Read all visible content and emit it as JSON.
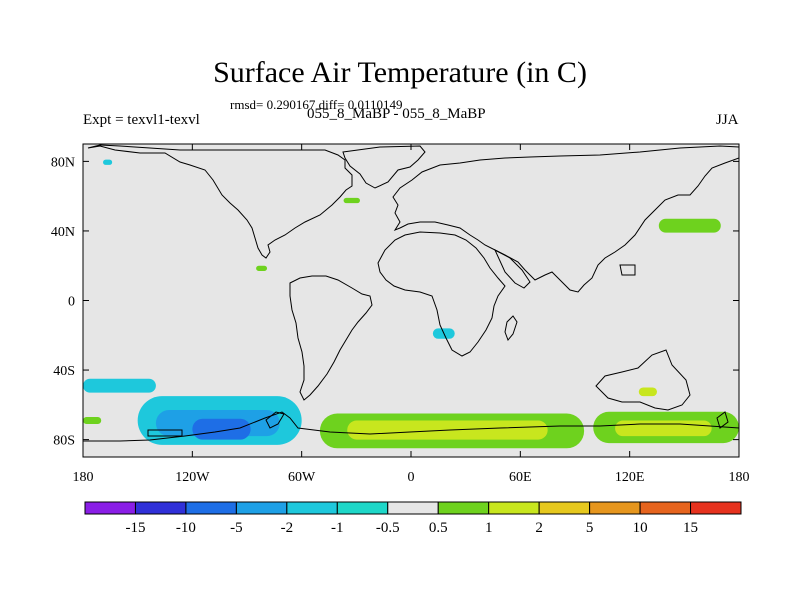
{
  "chart_data": {
    "type": "heatmap",
    "title": "Surface Air Temperature (in C)",
    "stats_text": "rmsd= 0.290167 diff= 0.0110149",
    "subtitle": "055_8_MaBP - 055_8_MaBP",
    "left_label": "Expt = texvl1-texvl",
    "right_label": "JJA",
    "x_ticks": [
      {
        "label": "180",
        "lon": -180
      },
      {
        "label": "120W",
        "lon": -120
      },
      {
        "label": "60W",
        "lon": -60
      },
      {
        "label": "0",
        "lon": 0
      },
      {
        "label": "60E",
        "lon": 60
      },
      {
        "label": "120E",
        "lon": 120
      },
      {
        "label": "180",
        "lon": 180
      }
    ],
    "y_ticks": [
      {
        "label": "80N",
        "lat": 80
      },
      {
        "label": "40N",
        "lat": 40
      },
      {
        "label": "0",
        "lat": 0
      },
      {
        "label": "40S",
        "lat": -40
      },
      {
        "label": "80S",
        "lat": -80
      }
    ],
    "xlim": [
      -180,
      180
    ],
    "ylim": [
      -90,
      90
    ],
    "colorbar": {
      "colors": [
        "#8a1ee6",
        "#3030d8",
        "#1e6ee6",
        "#1ea0e6",
        "#1ec8dc",
        "#1ed7c8",
        "#e6e6e6",
        "#6ed21e",
        "#c8e61e",
        "#e6c81e",
        "#e6961e",
        "#e6641e",
        "#e6321e"
      ],
      "labels": [
        "-15",
        "-10",
        "-5",
        "-2",
        "-1",
        "-0.5",
        "0.5",
        "1",
        "2",
        "5",
        "10",
        "15"
      ]
    },
    "anomaly_regions": [
      {
        "name": "south-pacific-cold-west",
        "color": "#1ec8dc",
        "lon_min": -180,
        "lon_max": -140,
        "lat_min": -53,
        "lat_max": -45
      },
      {
        "name": "south-pacific-cold-main",
        "color": "#1ec8dc",
        "lon_min": -150,
        "lon_max": -60,
        "lat_min": -83,
        "lat_max": -55
      },
      {
        "name": "south-pacific-cold-core",
        "color": "#1ea0e6",
        "lon_min": -140,
        "lon_max": -72,
        "lat_min": -78,
        "lat_max": -63
      },
      {
        "name": "south-pacific-cold-deep",
        "color": "#1e6ee6",
        "lon_min": -120,
        "lon_max": -88,
        "lat_min": -80,
        "lat_max": -68
      },
      {
        "name": "southern-ocean-warm-atlantic",
        "color": "#6ed21e",
        "lon_min": -50,
        "lon_max": 95,
        "lat_min": -85,
        "lat_max": -65
      },
      {
        "name": "southern-ocean-warm-atlantic-core",
        "color": "#c8e61e",
        "lon_min": -35,
        "lon_max": 75,
        "lat_min": -80,
        "lat_max": -69
      },
      {
        "name": "southern-ocean-warm-indian",
        "color": "#6ed21e",
        "lon_min": 100,
        "lon_max": 180,
        "lat_min": -82,
        "lat_max": -64
      },
      {
        "name": "southern-ocean-warm-indian-core",
        "color": "#c8e61e",
        "lon_min": 112,
        "lon_max": 165,
        "lat_min": -78,
        "lat_max": -69
      },
      {
        "name": "north-pacific-warm",
        "color": "#6ed21e",
        "lon_min": 136,
        "lon_max": 170,
        "lat_min": 39,
        "lat_max": 47
      },
      {
        "name": "pacific-far-west-warm",
        "color": "#6ed21e",
        "lon_min": -180,
        "lon_max": -170,
        "lat_min": -71,
        "lat_max": -67
      },
      {
        "name": "australia-south-warm",
        "color": "#c8e61e",
        "lon_min": 125,
        "lon_max": 135,
        "lat_min": -55,
        "lat_max": -50
      },
      {
        "name": "north-atlantic-warm",
        "color": "#6ed21e",
        "lon_min": -37,
        "lon_max": -28,
        "lat_min": 56,
        "lat_max": 59
      },
      {
        "name": "gulf-warm",
        "color": "#6ed21e",
        "lon_min": -85,
        "lon_max": -79,
        "lat_min": 17,
        "lat_max": 20
      },
      {
        "name": "south-atlantic-cold",
        "color": "#1ec8dc",
        "lon_min": 12,
        "lon_max": 24,
        "lat_min": -22,
        "lat_max": -16
      },
      {
        "name": "arctic-cold-west",
        "color": "#1ec8dc",
        "lon_min": -169,
        "lon_max": -164,
        "lat_min": 78,
        "lat_max": 81
      }
    ]
  }
}
